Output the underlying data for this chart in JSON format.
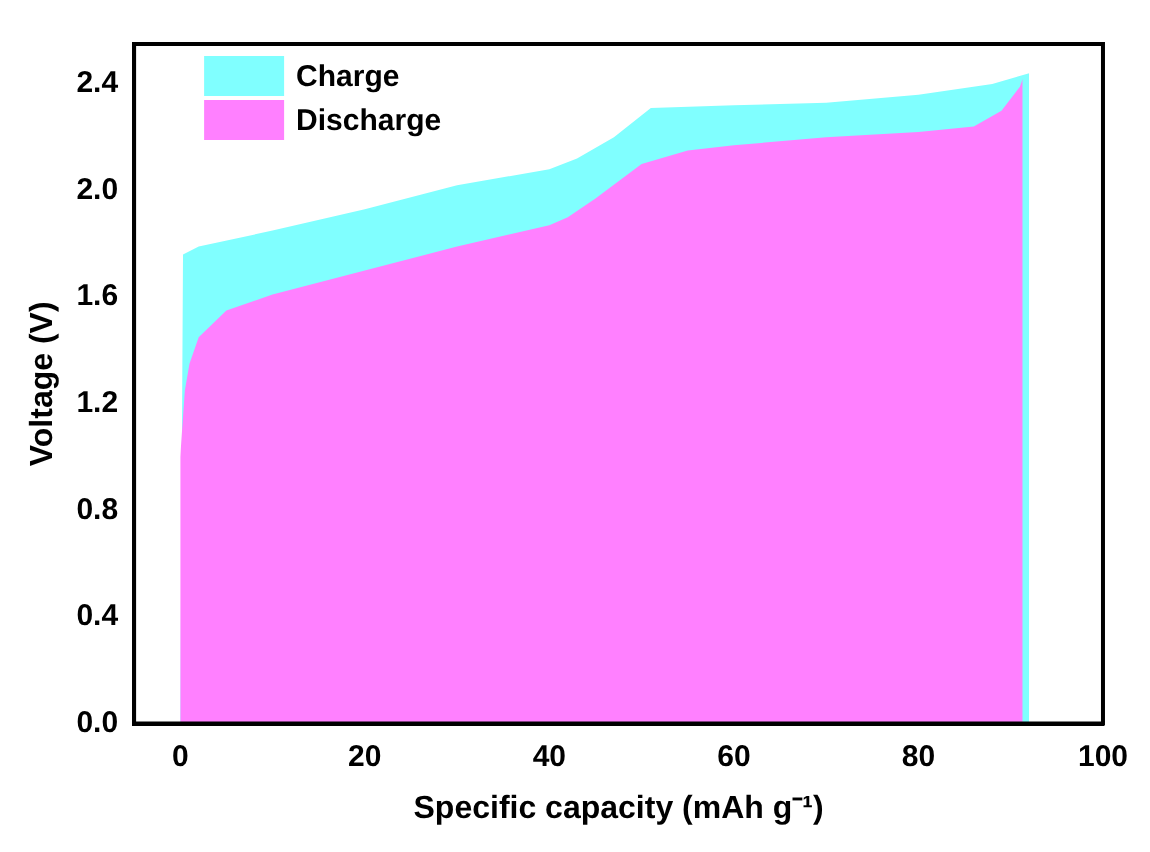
{
  "chart_data": {
    "type": "area",
    "xlabel": "Specific capacity (mAh g⁻¹)",
    "ylabel": "Voltage (V)",
    "xlim": [
      -5,
      100
    ],
    "xticks": [
      0,
      20,
      40,
      60,
      80,
      100
    ],
    "ylim": [
      0,
      2.55
    ],
    "yticks": [
      {
        "value": 0,
        "label": "0.0"
      },
      0.4,
      0.8,
      1.2,
      1.6,
      {
        "value": 2,
        "label": "2.0"
      },
      2.4
    ],
    "legend": "top left",
    "grid": false,
    "series": [
      {
        "name": "Charge",
        "color": "#80ffff",
        "x": [
          0,
          0.3,
          2,
          10,
          20,
          30,
          40,
          43,
          47,
          51,
          60,
          70,
          80,
          88,
          92,
          92
        ],
        "values": [
          0,
          1.76,
          1.79,
          1.85,
          1.93,
          2.02,
          2.08,
          2.12,
          2.2,
          2.31,
          2.32,
          2.33,
          2.36,
          2.4,
          2.44,
          0
        ]
      },
      {
        "name": "Discharge",
        "color": "#ff80ff",
        "x": [
          0,
          0,
          0.5,
          1,
          2,
          5,
          10,
          20,
          30,
          40,
          42,
          45,
          50,
          55,
          60,
          70,
          80,
          86,
          89,
          91,
          91.3,
          91.3
        ],
        "values": [
          0,
          1.0,
          1.25,
          1.35,
          1.45,
          1.55,
          1.61,
          1.7,
          1.79,
          1.87,
          1.9,
          1.97,
          2.1,
          2.15,
          2.17,
          2.2,
          2.22,
          2.24,
          2.3,
          2.39,
          2.42,
          0
        ]
      }
    ]
  }
}
